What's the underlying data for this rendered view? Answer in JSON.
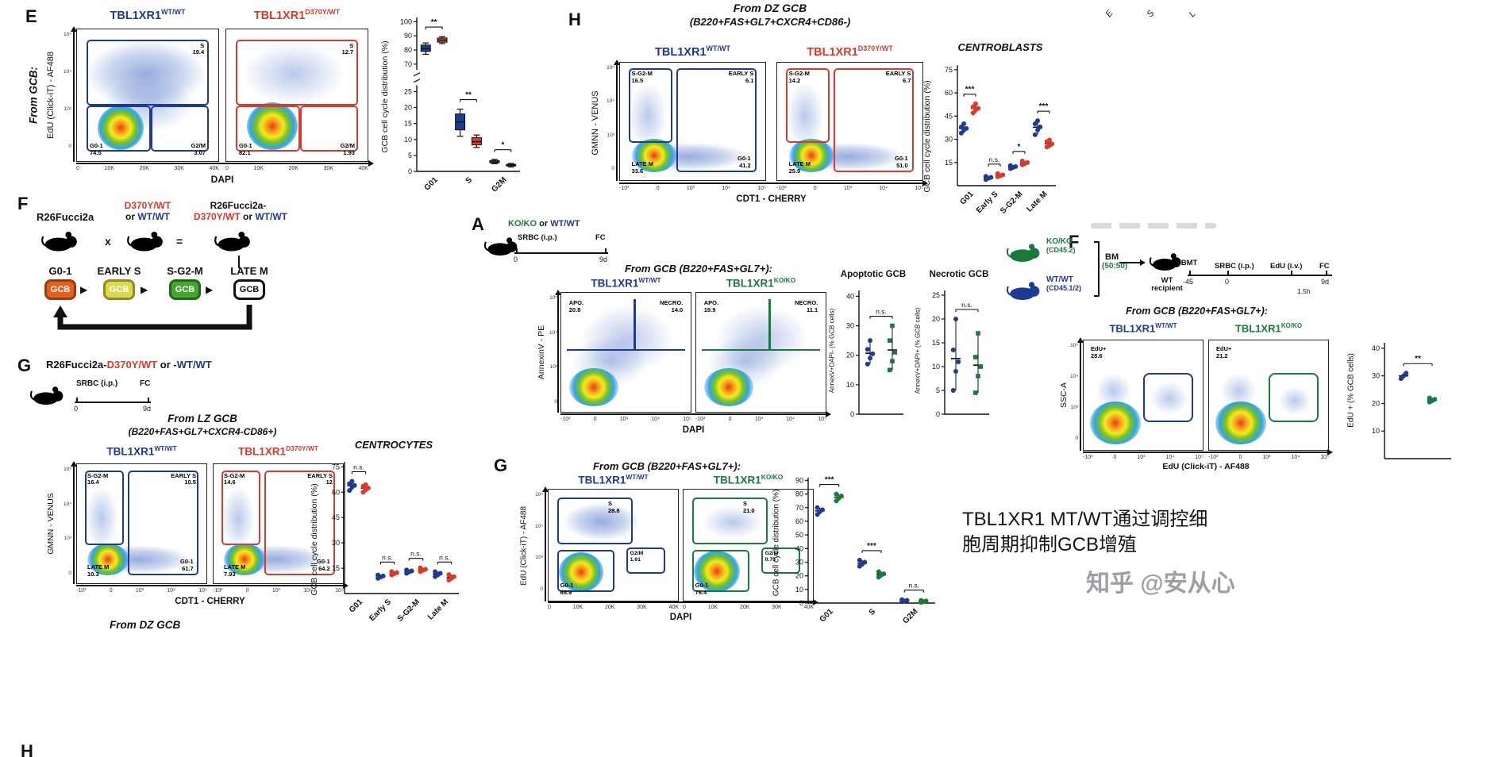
{
  "meta": {
    "caption_line1": "TBL1XR1 MT/WT通过调控细",
    "caption_line2": "胞周期抑制GCB增殖",
    "watermark": "知乎 @安从心"
  },
  "shared": {
    "gene": "TBL1XR1",
    "wt": "WT/WT",
    "mut": "D370Y/WT",
    "ko": "KO/KO",
    "yticks_log": [
      "10⁵",
      "10⁴",
      "10³",
      "0"
    ],
    "xticks_dapi": [
      "0",
      "10K",
      "20K",
      "30K",
      "40K"
    ],
    "xticks_log": [
      "-10³",
      "0",
      "10³",
      "10⁴",
      "10⁵"
    ]
  },
  "cropped": {
    "l1": "E",
    "l2": "S",
    "l3": "L"
  },
  "panelE": {
    "label": "E",
    "from": "From GCB:",
    "ylab": "EdU (Click-iT) - AF488",
    "xlab": "DAPI",
    "p1": {
      "s": "S",
      "sv": "19.4",
      "g01": "G0-1",
      "g01v": "74.5",
      "g2m": "G2/M",
      "g2mv": "3.07"
    },
    "p2": {
      "s": "S",
      "sv": "12.7",
      "g01": "G0-1",
      "g01v": "82.1",
      "g2m": "G2/M",
      "g2mv": "1.93"
    }
  },
  "panelF_left": {
    "label": "F",
    "m1": "R26Fucci2a",
    "x": "x",
    "m2a": "D370Y/WT",
    "m2b": "or ",
    "m2c": "WT/WT",
    "eq": "=",
    "m3a": "R26Fucci2a-",
    "m3b": "D370Y/WT",
    "m3c": " or ",
    "m3d": "WT/WT",
    "stages": [
      "G0-1",
      "EARLY S",
      "S-G2-M",
      "LATE M"
    ],
    "gcb": "GCB"
  },
  "panelG_left": {
    "label": "G",
    "h1": "R26Fucci2a-",
    "h2": "D370Y/WT",
    "h3": " or -",
    "h4": "WT/WT",
    "srbc": "SRBC (i.p.)",
    "fc": "FC",
    "t0": "0",
    "t9": "9d",
    "from1": "From LZ GCB",
    "from2": "(B220+FAS+GL7+CXCR4-CD86+)",
    "ylab": "GMNN - VENUS",
    "xlab": "CDT1 - CHERRY",
    "p1": {
      "sg2m": "S-G2-M",
      "sg2mv": "16.4",
      "es": "EARLY S",
      "esv": "10.5",
      "lm": "LATE M",
      "lmv": "10.3",
      "g01": "G0-1",
      "g01v": "61.7"
    },
    "p2": {
      "sg2m": "S-G2-M",
      "sg2mv": "14.6",
      "es": "EARLY S",
      "esv": "12",
      "lm": "LATE M",
      "lmv": "7.93",
      "g01": "G0-1",
      "g01v": "64.2"
    }
  },
  "panelH": {
    "label": "H",
    "from1": "From DZ GCB",
    "from2": "(B220+FAS+GL7+CXCR4+CD86-)",
    "ylab": "GMNN - VENUS",
    "xlab": "CDT1 - CHERRY",
    "p1": {
      "sg2m": "S-G2-M",
      "sg2mv": "16.5",
      "es": "EARLY S",
      "esv": "6.1",
      "lm": "LATE M",
      "lmv": "33.6",
      "g01": "G0-1",
      "g01v": "41.2"
    },
    "p2": {
      "sg2m": "S-G2-M",
      "sg2mv": "14.2",
      "es": "EARLY S",
      "esv": "6.7",
      "lm": "LATE M",
      "lmv": "25.9",
      "g01": "G0-1",
      "g01v": "51.0"
    }
  },
  "panelA": {
    "label": "A",
    "h1": "KO/KO",
    "h2": " or ",
    "h3": "WT/WT",
    "srbc": "SRBC (i.p.)",
    "fc": "FC",
    "t0": "0",
    "t9": "9d",
    "from": "From GCB (B220+FAS+GL7+):",
    "ylab": "AnnexinV - PE",
    "xlab": "DAPI",
    "p1": {
      "apo": "APO.",
      "apov": "20.8",
      "nec": "NECRO.",
      "necv": "14.0"
    },
    "p2": {
      "apo": "APO.",
      "apov": "19.9",
      "nec": "NECRO.",
      "necv": "11.1"
    }
  },
  "panelG_mid": {
    "label": "G",
    "from": "From GCB (B220+FAS+GL7+):",
    "ylab": "EdU (Click-iT) - AF488",
    "xlab": "DAPI",
    "p1": {
      "s": "S",
      "sv": "28.8",
      "g2m": "G2/M",
      "g2mv": "1.61",
      "g01": "G0-1",
      "g01v": "68.9"
    },
    "p2": {
      "s": "S",
      "sv": "21.0",
      "g2m": "G2/M",
      "g2mv": "0.75",
      "g01": "G0-1",
      "g01v": "76.4"
    }
  },
  "panelF_right": {
    "label": "F",
    "ko1": "KO/KO",
    "ko2": "(CD45.2)",
    "wt1": "WT/WT",
    "wt2": "(CD45.1/2)",
    "bm": "BM",
    "ratio": "(50:50)",
    "bmt": "BMT",
    "recip1": "WT",
    "recip2": "recipient",
    "srbc": "SRBC (i.p.)",
    "edu": "EdU (i.v.)",
    "fc": "FC",
    "tm45": "-45",
    "t0": "0",
    "t9": "9d",
    "t15": "1.5h",
    "from": "From GCB (B220+FAS+GL7+):",
    "ylab": "SSC-A",
    "xlab": "EdU (Click-iT) - AF488",
    "p1": {
      "edu": "EdU+",
      "eduv": "28.6"
    },
    "p2": {
      "edu": "EdU+",
      "eduv": "21.2"
    }
  },
  "bottom": {
    "h": "H",
    "from_dz": "From DZ GCB"
  },
  "chart_data": [
    {
      "id": "e_box",
      "type": "box",
      "title": "",
      "ylabel": "GCB cell cycle distribution (%)",
      "categories": [
        "G01",
        "S",
        "G2M"
      ],
      "yticks": [
        100,
        90,
        80,
        70,
        25,
        20,
        15,
        10,
        5,
        0
      ],
      "segments": [
        {
          "v0": 66,
          "v1": 103,
          "f0": 0.0,
          "f1": 0.34
        },
        {
          "v0": 0,
          "v1": 27,
          "f0": 0.44,
          "f1": 1.0
        }
      ],
      "padT": 16,
      "padB": 30,
      "padL": 30,
      "sig": [
        "**",
        "**",
        "*"
      ],
      "series": [
        {
          "name": "WT/WT",
          "color": "#1e3a93",
          "boxes": [
            {
              "lo": 77,
              "q1": 79,
              "med": 81,
              "q3": 83.5,
              "hi": 85
            },
            {
              "lo": 11,
              "q1": 13,
              "med": 15.5,
              "q3": 18,
              "hi": 19.5
            },
            {
              "lo": 2.4,
              "q1": 2.7,
              "med": 3.0,
              "q3": 3.4,
              "hi": 3.8
            }
          ]
        },
        {
          "name": "D370Y/WT",
          "color": "#d93a2b",
          "boxes": [
            {
              "lo": 84.5,
              "q1": 85.5,
              "med": 87,
              "q3": 88.5,
              "hi": 89.5
            },
            {
              "lo": 7.5,
              "q1": 8.3,
              "med": 9.3,
              "q3": 10.6,
              "hi": 11.4
            },
            {
              "lo": 1.4,
              "q1": 1.7,
              "med": 1.95,
              "q3": 2.2,
              "hi": 2.5
            }
          ]
        }
      ]
    },
    {
      "id": "h_scatter",
      "type": "scatter",
      "title": "CENTROBLASTS",
      "ylabel": "GCB cell cycle distribution (%)",
      "ymin": 0,
      "ymax": 78,
      "yticks": [
        15,
        30,
        45,
        60,
        75
      ],
      "padL": 28,
      "padT": 16,
      "padB": 46,
      "categories": [
        "G01",
        "Early S",
        "S-G2-M",
        "Late M"
      ],
      "sig": [
        "***",
        "n.s.",
        "*",
        "***"
      ],
      "series": [
        {
          "name": "WT/WT",
          "color": "#1e3a93",
          "marker": "circle",
          "values": [
            [
              34,
              36,
              37,
              38,
              40
            ],
            [
              4,
              4.8,
              5.4,
              6
            ],
            [
              11,
              11.8,
              12.4,
              13
            ],
            [
              33,
              36,
              38,
              40,
              42
            ]
          ]
        },
        {
          "name": "D370Y/WT",
          "color": "#d93a2b",
          "marker": "circle",
          "values": [
            [
              47,
              49,
              50,
              51,
              53
            ],
            [
              5.8,
              6.4,
              7,
              7.8
            ],
            [
              13.5,
              14.3,
              15,
              16
            ],
            [
              25,
              26,
              27,
              28.5,
              29.5
            ]
          ]
        }
      ]
    },
    {
      "id": "g_left_scatter",
      "type": "scatter",
      "title": "CENTROCYTES",
      "ylabel": "GCB cell cycle distribution (%)",
      "ymin": 0,
      "ymax": 78,
      "yticks": [
        15,
        30,
        45,
        60,
        75
      ],
      "padL": 28,
      "padT": 16,
      "padB": 46,
      "categories": [
        "G01",
        "Early S",
        "S-G2-M",
        "Late M"
      ],
      "sig": [
        "n.s.",
        "n.s.",
        "n.s.",
        "n.s."
      ],
      "series": [
        {
          "name": "WT/WT",
          "color": "#1e3a93",
          "marker": "circle",
          "values": [
            [
              61,
              63,
              64,
              65,
              66.5
            ],
            [
              9,
              9.8,
              10.4,
              11
            ],
            [
              12,
              12.8,
              13.4,
              14
            ],
            [
              10,
              11,
              12,
              13
            ]
          ]
        },
        {
          "name": "D370Y/WT",
          "color": "#d93a2b",
          "marker": "circle",
          "values": [
            [
              60,
              61.5,
              62.5,
              63.5,
              64.5
            ],
            [
              11,
              11.8,
              12.4,
              13
            ],
            [
              13,
              13.8,
              14.4,
              15.2
            ],
            [
              8,
              9,
              10,
              11.2
            ]
          ]
        }
      ]
    },
    {
      "id": "a_apoptotic",
      "type": "scatter",
      "title": "Apoptotic GCB",
      "ylabel": "AnnexV+DAPI- (% GCB cells)",
      "ymin": 0,
      "ymax": 42,
      "yticks": [
        0,
        10,
        20,
        30,
        40
      ],
      "padL": 26,
      "padT": 14,
      "padB": 10,
      "ggap": 14,
      "categories": [
        ""
      ],
      "sig": [
        "n.s."
      ],
      "series": [
        {
          "name": "WT/WT",
          "color": "#1e3a93",
          "marker": "circle",
          "values": [
            [
              17,
              19,
              20.5,
              22,
              25
            ]
          ]
        },
        {
          "name": "KO/KO",
          "color": "#1a7a3c",
          "marker": "square",
          "values": [
            [
              15,
              18,
              21,
              25,
              30
            ]
          ]
        }
      ]
    },
    {
      "id": "a_necrotic",
      "type": "scatter",
      "title": "Necrotic GCB",
      "ylabel": "AnnexV+DAPI+ (% GCB cells)",
      "ymin": 0,
      "ymax": 26,
      "yticks": [
        0,
        5,
        10,
        15,
        20,
        25
      ],
      "padL": 26,
      "padT": 14,
      "padB": 10,
      "ggap": 14,
      "categories": [
        ""
      ],
      "sig": [
        "n.s."
      ],
      "series": [
        {
          "name": "WT/WT",
          "color": "#1e3a93",
          "marker": "circle",
          "values": [
            [
              5,
              9,
              11,
              13.5,
              20
            ]
          ]
        },
        {
          "name": "KO/KO",
          "color": "#1a7a3c",
          "marker": "square",
          "values": [
            [
              4.5,
              8,
              10,
              12,
              17
            ]
          ]
        }
      ]
    },
    {
      "id": "g_mid_scatter",
      "type": "scatter",
      "title": "",
      "ylabel": "GCB cell cycle distribution (%)",
      "ymin": 0,
      "ymax": 92,
      "yticks": [
        0,
        10,
        20,
        30,
        40,
        50,
        60,
        70,
        80,
        90
      ],
      "padL": 28,
      "padT": 14,
      "padB": 42,
      "categories": [
        "G01",
        "S",
        "G2M"
      ],
      "sig": [
        "***",
        "***",
        "n.s."
      ],
      "series": [
        {
          "name": "WT/WT",
          "color": "#1e3a93",
          "marker": "circle",
          "values": [
            [
              65,
              67,
              68.5,
              70
            ],
            [
              27,
              28.5,
              30,
              31.5
            ],
            [
              1,
              1.5,
              2,
              2.5
            ]
          ]
        },
        {
          "name": "KO/KO",
          "color": "#1a7a3c",
          "marker": "circle",
          "values": [
            [
              75,
              77,
              78.5,
              80
            ],
            [
              19,
              20.5,
              21.5,
              23
            ],
            [
              0.5,
              1,
              1.5,
              2
            ]
          ]
        }
      ]
    },
    {
      "id": "f_right_scatter",
      "type": "scatter",
      "title": "",
      "ylabel": "EdU + (% GCB cells)",
      "ymin": 0,
      "ymax": 42,
      "yticks": [
        10,
        20,
        30,
        40
      ],
      "padL": 30,
      "padT": 16,
      "padB": 10,
      "ggap": 18,
      "categories": [
        ""
      ],
      "sig": [
        "**"
      ],
      "series": [
        {
          "name": "WT/WT",
          "color": "#1e3a93",
          "marker": "circle",
          "values": [
            [
              29,
              30,
              31
            ]
          ]
        },
        {
          "name": "KO/KO",
          "color": "#1a7a3c",
          "marker": "circle",
          "values": [
            [
              20.5,
              21,
              21.5,
              22
            ]
          ]
        }
      ]
    }
  ]
}
